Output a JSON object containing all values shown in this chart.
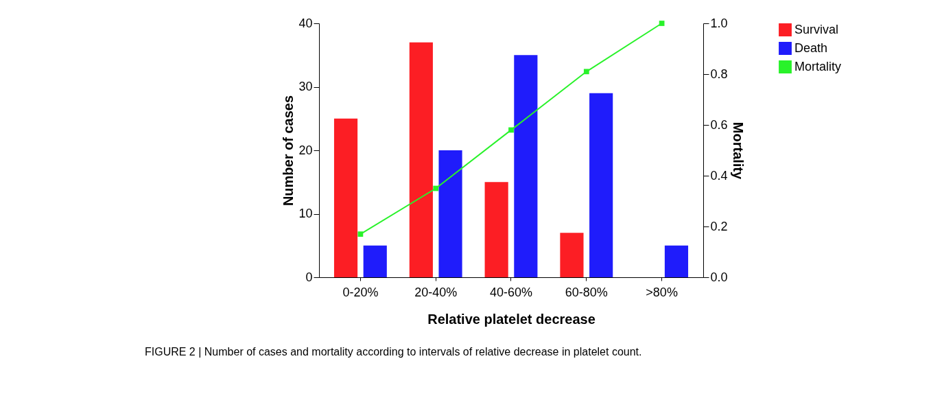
{
  "chart_data": {
    "type": "bar",
    "xlabel": "Relative  platelet decrease",
    "ylabel": "Number of cases",
    "y2label": "Mortality",
    "categories": [
      "0-20%",
      "20-40%",
      "40-60%",
      "60-80%",
      ">80%"
    ],
    "series": [
      {
        "name": "Survival",
        "color": "#fc1e24",
        "values": [
          25,
          37,
          15,
          7,
          0
        ]
      },
      {
        "name": "Death",
        "color": "#1f1cfb",
        "values": [
          5,
          20,
          35,
          29,
          5
        ]
      },
      {
        "name": "Mortality",
        "color": "#29f22a",
        "type": "line",
        "axis": "y2",
        "marker": "square",
        "values": [
          0.17,
          0.35,
          0.58,
          0.81,
          1.0
        ]
      }
    ],
    "ylim": [
      0,
      40
    ],
    "yticks": [
      0,
      10,
      20,
      30,
      40
    ],
    "y2lim": [
      0,
      1
    ],
    "y2ticks": [
      {
        "value": 0,
        "label": "0.0"
      },
      {
        "value": 0.2,
        "label": "0.2"
      },
      {
        "value": 0.4,
        "label": "0.4"
      },
      {
        "value": 0.6,
        "label": "0.6"
      },
      {
        "value": 0.8,
        "label": "0.8"
      },
      {
        "value": 1,
        "label": "1.0"
      }
    ],
    "grid": false,
    "legend": "top right",
    "annotations": [
      "FIGURE 2 | Number of cases and mortality according to intervals of relative decrease in platelet count."
    ]
  }
}
